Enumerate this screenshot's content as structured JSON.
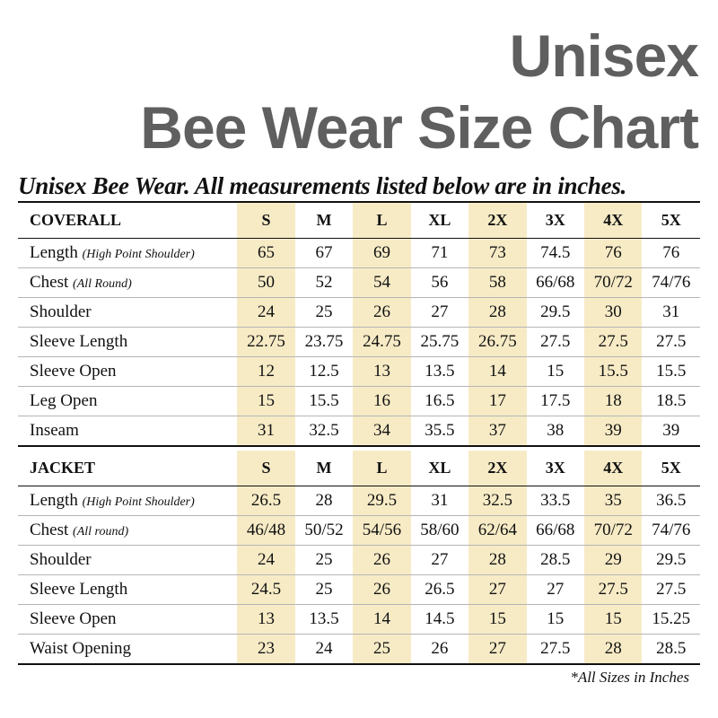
{
  "title": {
    "line1": "Unisex",
    "line2": "Bee Wear Size Chart"
  },
  "subtitle": "Unisex Bee Wear. All measurements listed below are in inches.",
  "sizes": [
    "S",
    "M",
    "L",
    "XL",
    "2X",
    "3X",
    "4X",
    "5X"
  ],
  "highlight_color": "#f7ebc6",
  "title_color": "#5f5f5f",
  "tables": [
    {
      "name": "COVERALL",
      "rows": [
        {
          "label": "Length",
          "note": "(High Point Shoulder)",
          "values": [
            "65",
            "67",
            "69",
            "71",
            "73",
            "74.5",
            "76",
            "76"
          ]
        },
        {
          "label": "Chest",
          "note": "(All Round)",
          "values": [
            "50",
            "52",
            "54",
            "56",
            "58",
            "66/68",
            "70/72",
            "74/76"
          ]
        },
        {
          "label": "Shoulder",
          "note": "",
          "values": [
            "24",
            "25",
            "26",
            "27",
            "28",
            "29.5",
            "30",
            "31"
          ]
        },
        {
          "label": "Sleeve Length",
          "note": "",
          "values": [
            "22.75",
            "23.75",
            "24.75",
            "25.75",
            "26.75",
            "27.5",
            "27.5",
            "27.5"
          ]
        },
        {
          "label": "Sleeve Open",
          "note": "",
          "values": [
            "12",
            "12.5",
            "13",
            "13.5",
            "14",
            "15",
            "15.5",
            "15.5"
          ]
        },
        {
          "label": "Leg Open",
          "note": "",
          "values": [
            "15",
            "15.5",
            "16",
            "16.5",
            "17",
            "17.5",
            "18",
            "18.5"
          ]
        },
        {
          "label": "Inseam",
          "note": "",
          "values": [
            "31",
            "32.5",
            "34",
            "35.5",
            "37",
            "38",
            "39",
            "39"
          ]
        }
      ]
    },
    {
      "name": "JACKET",
      "rows": [
        {
          "label": "Length",
          "note": "(High Point Shoulder)",
          "values": [
            "26.5",
            "28",
            "29.5",
            "31",
            "32.5",
            "33.5",
            "35",
            "36.5"
          ]
        },
        {
          "label": "Chest",
          "note": "(All round)",
          "values": [
            "46/48",
            "50/52",
            "54/56",
            "58/60",
            "62/64",
            "66/68",
            "70/72",
            "74/76"
          ]
        },
        {
          "label": "Shoulder",
          "note": "",
          "values": [
            "24",
            "25",
            "26",
            "27",
            "28",
            "28.5",
            "29",
            "29.5"
          ]
        },
        {
          "label": "Sleeve Length",
          "note": "",
          "values": [
            "24.5",
            "25",
            "26",
            "26.5",
            "27",
            "27",
            "27.5",
            "27.5"
          ]
        },
        {
          "label": "Sleeve Open",
          "note": "",
          "values": [
            "13",
            "13.5",
            "14",
            "14.5",
            "15",
            "15",
            "15",
            "15.25"
          ]
        },
        {
          "label": "Waist Opening",
          "note": "",
          "values": [
            "23",
            "24",
            "25",
            "26",
            "27",
            "27.5",
            "28",
            "28.5"
          ]
        }
      ]
    }
  ],
  "footnote": "*All Sizes in Inches"
}
